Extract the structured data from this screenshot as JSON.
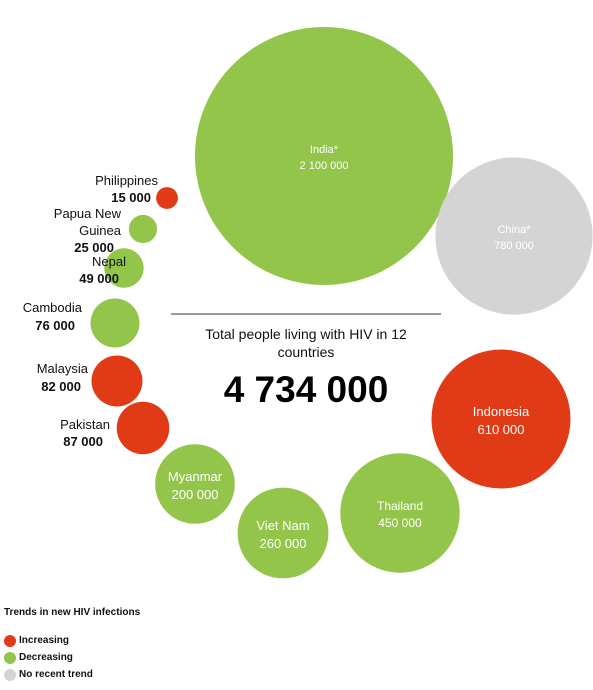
{
  "chart_data": {
    "type": "bubble",
    "total": {
      "caption_line1": "Total people living with HIV in 12",
      "caption_line2": "countries",
      "value": "4 734 000"
    },
    "points": [
      {
        "country_lines": [
          "India*"
        ],
        "value": 2100000,
        "value_label": "2 100 000",
        "trend": "decreasing",
        "label_inside": true
      },
      {
        "country_lines": [
          "China*"
        ],
        "value": 780000,
        "value_label": "780 000",
        "trend": "no_recent_trend",
        "label_inside": true
      },
      {
        "country_lines": [
          "Indonesia"
        ],
        "value": 610000,
        "value_label": "610 000",
        "trend": "increasing",
        "label_inside": true
      },
      {
        "country_lines": [
          "Thailand"
        ],
        "value": 450000,
        "value_label": "450 000",
        "trend": "decreasing",
        "label_inside": true
      },
      {
        "country_lines": [
          "Viet Nam"
        ],
        "value": 260000,
        "value_label": "260 000",
        "trend": "decreasing",
        "label_inside": true
      },
      {
        "country_lines": [
          "Myanmar"
        ],
        "value": 200000,
        "value_label": "200 000",
        "trend": "decreasing",
        "label_inside": true
      },
      {
        "country_lines": [
          "Pakistan"
        ],
        "value": 87000,
        "value_label": "87 000",
        "trend": "increasing",
        "label_inside": false
      },
      {
        "country_lines": [
          "Malaysia"
        ],
        "value": 82000,
        "value_label": "82 000",
        "trend": "increasing",
        "label_inside": false
      },
      {
        "country_lines": [
          "Cambodia"
        ],
        "value": 76000,
        "value_label": "76 000",
        "trend": "decreasing",
        "label_inside": false
      },
      {
        "country_lines": [
          "Nepal"
        ],
        "value": 49000,
        "value_label": "49 000",
        "trend": "decreasing",
        "label_inside": false
      },
      {
        "country_lines": [
          "Papua New",
          "Guinea"
        ],
        "value": 25000,
        "value_label": "25 000",
        "trend": "decreasing",
        "label_inside": false
      },
      {
        "country_lines": [
          "Philippines"
        ],
        "value": 15000,
        "value_label": "15 000",
        "trend": "increasing",
        "label_inside": false
      }
    ],
    "legend": {
      "title": "Trends in new HIV infections",
      "items": [
        {
          "key": "increasing",
          "label": "Increasing",
          "color": "#e03a17"
        },
        {
          "key": "decreasing",
          "label": "Decreasing",
          "color": "#92c54a"
        },
        {
          "key": "no_recent_trend",
          "label": "No recent trend",
          "color": "#d4d4d4"
        }
      ]
    }
  }
}
